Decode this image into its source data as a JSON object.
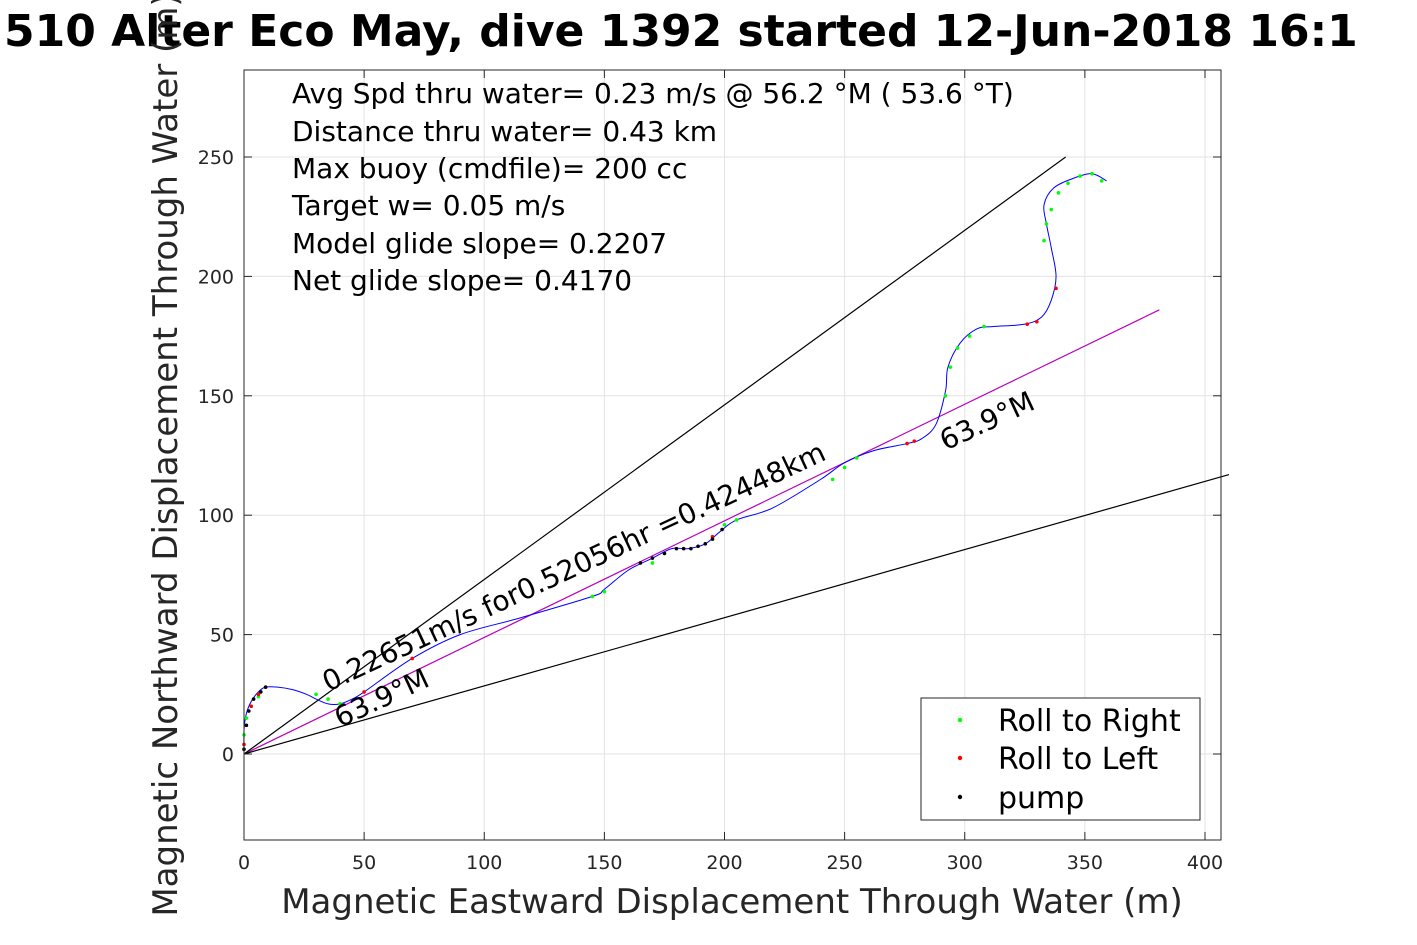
{
  "chart_data": {
    "type": "line",
    "title": "510 Alter Eco May, dive 1392 started 12-Jun-2018 16:1",
    "xlabel": "Magnetic Eastward Displacement Through Water (m)",
    "ylabel": "Magnetic Northward Displacement Through Water (m)",
    "xlim": [
      0,
      410
    ],
    "ylim": [
      -35,
      285
    ],
    "xticks": [
      0,
      50,
      100,
      150,
      200,
      250,
      300,
      350,
      400
    ],
    "yticks": [
      0,
      50,
      100,
      150,
      200,
      250
    ],
    "grid": true,
    "legend_position": "bottom-right",
    "info_lines": [
      "Avg Spd thru water=  0.23 m/s @  56.2 °M ( 53.6 °T)",
      "Distance thru water=  0.43 km",
      "Max buoy (cmdfile)= 200 cc",
      "Target w= 0.05 m/s",
      "Model glide slope= 0.2207",
      "Net glide slope= 0.4170"
    ],
    "annotations": [
      {
        "text": "0.22651m/s for0.52056hr =0.42448km",
        "x": 35,
        "y": 26,
        "angle_deg": -25
      },
      {
        "text": "63.9°M",
        "x": 40,
        "y": 11,
        "angle_deg": -25
      },
      {
        "text": "63.9°M",
        "x": 292,
        "y": 127,
        "angle_deg": -25
      }
    ],
    "series": [
      {
        "name": "track",
        "color": "#0000ff",
        "x": [
          0,
          0,
          1,
          3,
          6,
          9,
          14,
          20,
          26,
          30,
          35,
          40,
          45,
          50,
          70,
          90,
          115,
          145,
          150,
          160,
          170,
          178,
          185,
          192,
          198,
          205,
          220,
          240,
          250,
          262,
          276,
          282,
          288,
          292,
          293,
          298,
          305,
          312,
          325,
          332,
          336,
          338,
          336,
          334,
          333,
          337,
          345,
          353,
          359
        ],
        "y": [
          0,
          10,
          17,
          22,
          26,
          28,
          28,
          27,
          25,
          23,
          21,
          21,
          23,
          26,
          40,
          50,
          57,
          66,
          69,
          77,
          82,
          86,
          86,
          88,
          93,
          98,
          103,
          115,
          122,
          127,
          130,
          132,
          138,
          152,
          162,
          172,
          178,
          179,
          180,
          183,
          190,
          200,
          212,
          222,
          230,
          237,
          241,
          243,
          240
        ]
      },
      {
        "name": "net line",
        "color": "#bb00bb",
        "x": [
          0,
          381
        ],
        "y": [
          0,
          186
        ]
      },
      {
        "name": "upper bound",
        "color": "#000000",
        "x": [
          0,
          342
        ],
        "y": [
          0,
          250
        ]
      },
      {
        "name": "lower bound",
        "color": "#000000",
        "x": [
          0,
          410
        ],
        "y": [
          0,
          117
        ]
      },
      {
        "name": "Roll to Right",
        "color": "#00ff00",
        "marker": "dot",
        "x": [
          0,
          1,
          3,
          6,
          30,
          35,
          40,
          145,
          150,
          170,
          175,
          200,
          205,
          245,
          250,
          255,
          292,
          294,
          297,
          302,
          308,
          333,
          334,
          336,
          339,
          343,
          348,
          353,
          357
        ],
        "y": [
          8,
          15,
          20,
          24,
          25,
          23,
          21,
          66,
          68,
          80,
          84,
          96,
          98,
          115,
          120,
          124,
          150,
          162,
          170,
          175,
          179,
          215,
          222,
          228,
          235,
          239,
          242,
          243,
          240
        ]
      },
      {
        "name": "Roll to Left",
        "color": "#ff0000",
        "marker": "dot",
        "x": [
          0,
          3,
          6,
          9,
          50,
          70,
          195,
          276,
          279,
          326,
          330,
          338
        ],
        "y": [
          4,
          20,
          25,
          28,
          26,
          40,
          91,
          130,
          131,
          180,
          181,
          195
        ]
      },
      {
        "name": "pump",
        "color": "#000000",
        "marker": "dot",
        "x": [
          0,
          1,
          2,
          4,
          7,
          9,
          165,
          170,
          175,
          180,
          183,
          186,
          189,
          192,
          195,
          199
        ],
        "y": [
          2,
          12,
          18,
          23,
          26,
          28,
          80,
          82,
          84,
          86,
          86,
          86,
          87,
          88,
          90,
          94
        ]
      }
    ],
    "legend": [
      {
        "label": "Roll to Right",
        "color": "#00ff00"
      },
      {
        "label": "Roll to Left",
        "color": "#ff0000"
      },
      {
        "label": "pump",
        "color": "#000000"
      }
    ]
  }
}
